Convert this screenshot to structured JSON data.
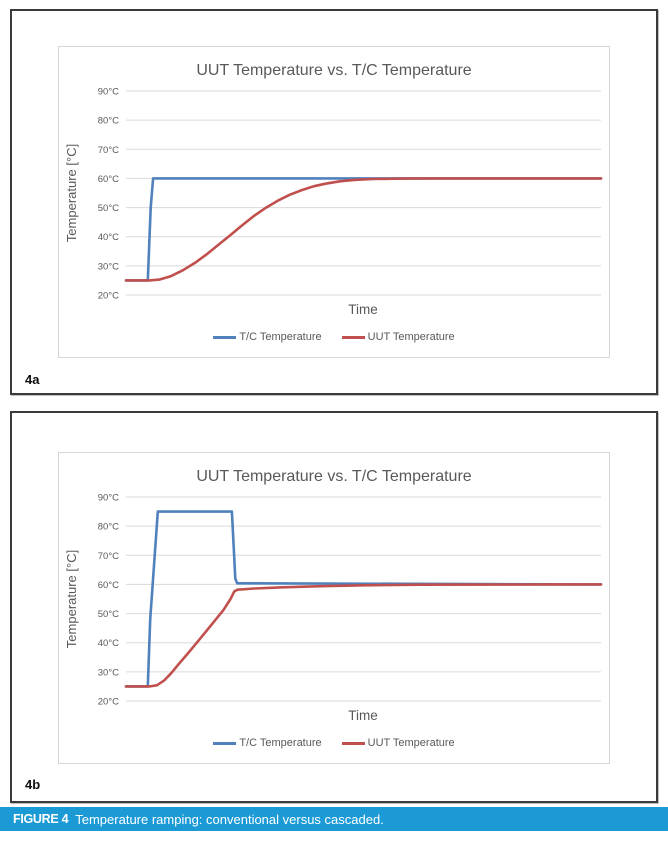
{
  "figures": [
    {
      "label": "4a"
    },
    {
      "label": "4b"
    }
  ],
  "caption": {
    "tag": "FIGURE 4",
    "text": "Temperature ramping: conventional versus cascaded.",
    "bar_color": "#1b9ad6"
  },
  "chart_data": [
    {
      "type": "line",
      "title": "UUT Temperature vs. T/C Temperature",
      "xlabel": "Time",
      "ylabel": "Temperature [°C]",
      "ylim": [
        20,
        90
      ],
      "xlim": [
        0,
        100
      ],
      "grid": true,
      "legend_position": "bottom",
      "y_ticks": [
        {
          "value": 90,
          "label": "90°C"
        },
        {
          "value": 80,
          "label": "80°C"
        },
        {
          "value": 70,
          "label": "70°C"
        },
        {
          "value": 60,
          "label": "60°C"
        },
        {
          "value": 50,
          "label": "50°C"
        },
        {
          "value": 40,
          "label": "40°C"
        },
        {
          "value": 30,
          "label": "30°C"
        },
        {
          "value": 20,
          "label": "20°C"
        }
      ],
      "series": [
        {
          "name": "T/C Temperature",
          "color": "#4f81bd",
          "points": [
            [
              0,
              25
            ],
            [
              4.6,
              25
            ],
            [
              5.2,
              50
            ],
            [
              5.7,
              60
            ],
            [
              100,
              60
            ]
          ]
        },
        {
          "name": "UUT Temperature",
          "color": "#c0504d",
          "points": [
            [
              0,
              25
            ],
            [
              5,
              25
            ],
            [
              7,
              25.3
            ],
            [
              9.5,
              26.5
            ],
            [
              12,
              28.5
            ],
            [
              14.5,
              31
            ],
            [
              17,
              34
            ],
            [
              19.5,
              37.3
            ],
            [
              22,
              40.6
            ],
            [
              24.5,
              44
            ],
            [
              27,
              47.2
            ],
            [
              29.5,
              50
            ],
            [
              32,
              52.4
            ],
            [
              34.5,
              54.4
            ],
            [
              37,
              56
            ],
            [
              39.5,
              57.3
            ],
            [
              42,
              58.2
            ],
            [
              45,
              59
            ],
            [
              48,
              59.5
            ],
            [
              52,
              59.8
            ],
            [
              58,
              59.95
            ],
            [
              65,
              60
            ],
            [
              100,
              60
            ]
          ]
        }
      ]
    },
    {
      "type": "line",
      "title": "UUT Temperature vs. T/C Temperature",
      "xlabel": "Time",
      "ylabel": "Temperature [°C]",
      "ylim": [
        20,
        90
      ],
      "xlim": [
        0,
        100
      ],
      "grid": true,
      "legend_position": "bottom",
      "y_ticks": [
        {
          "value": 90,
          "label": "90°C"
        },
        {
          "value": 80,
          "label": "80°C"
        },
        {
          "value": 70,
          "label": "70°C"
        },
        {
          "value": 60,
          "label": "60°C"
        },
        {
          "value": 50,
          "label": "50°C"
        },
        {
          "value": 40,
          "label": "40°C"
        },
        {
          "value": 30,
          "label": "30°C"
        },
        {
          "value": 20,
          "label": "20°C"
        }
      ],
      "series": [
        {
          "name": "T/C Temperature",
          "color": "#4f81bd",
          "points": [
            [
              0,
              25
            ],
            [
              4.6,
              25
            ],
            [
              5.1,
              48
            ],
            [
              6.7,
              85
            ],
            [
              22.3,
              85
            ],
            [
              23,
              62
            ],
            [
              23.4,
              60.4
            ],
            [
              100,
              60
            ]
          ]
        },
        {
          "name": "UUT Temperature",
          "color": "#c0504d",
          "points": [
            [
              0,
              25
            ],
            [
              5,
              25
            ],
            [
              6.5,
              25.4
            ],
            [
              8,
              27
            ],
            [
              9.5,
              29.5
            ],
            [
              11,
              32.5
            ],
            [
              13,
              36.3
            ],
            [
              15,
              40.2
            ],
            [
              17,
              44.2
            ],
            [
              19,
              48.2
            ],
            [
              20.5,
              51.2
            ],
            [
              22,
              55
            ],
            [
              22.8,
              57.6
            ],
            [
              23.5,
              58.2
            ],
            [
              27,
              58.6
            ],
            [
              33,
              59
            ],
            [
              41,
              59.4
            ],
            [
              50,
              59.7
            ],
            [
              62,
              59.9
            ],
            [
              100,
              60
            ]
          ]
        }
      ]
    }
  ]
}
